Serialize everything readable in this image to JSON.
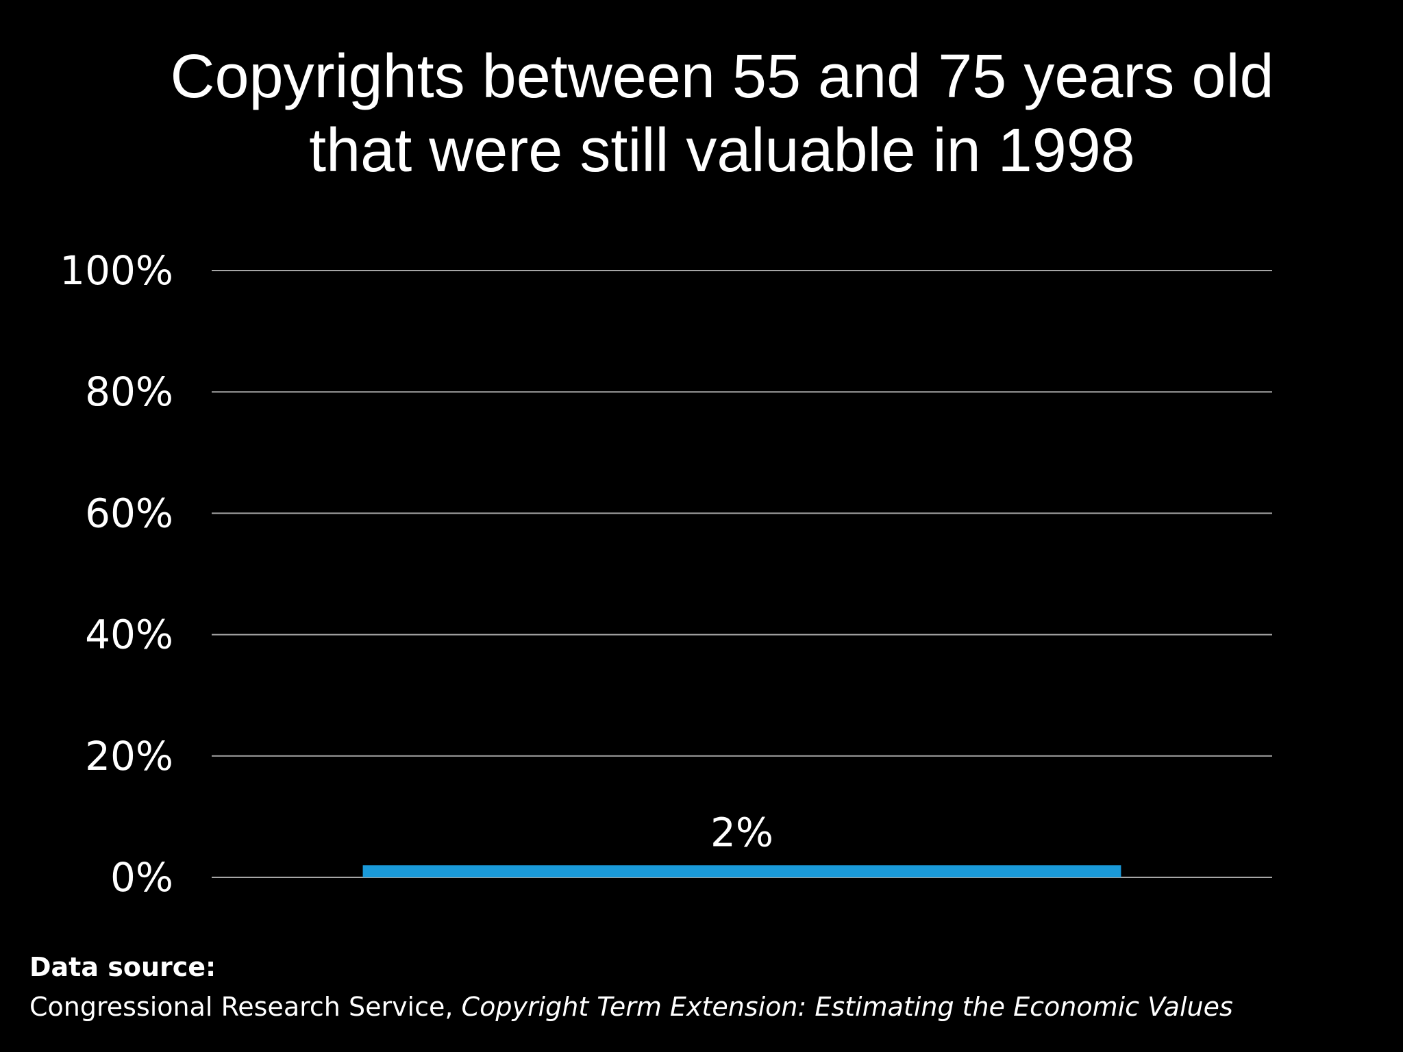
{
  "chart_data": {
    "type": "bar",
    "title": "Copyrights between 55 and 75 years old that were still valuable in 1998",
    "categories": [
      ""
    ],
    "values": [
      2
    ],
    "data_labels": [
      "2%"
    ],
    "ylim": [
      0,
      100
    ],
    "y_ticks": [
      "0%",
      "20%",
      "40%",
      "60%",
      "80%",
      "100%"
    ],
    "y_tick_values": [
      0,
      20,
      40,
      60,
      80,
      100
    ],
    "grid": true,
    "legend": "none",
    "colors": {
      "background": "#000000",
      "bar": "#1a9ad9",
      "gridline": "#a6a6a6",
      "text": "#ffffff"
    }
  },
  "source": {
    "heading": "Data source:",
    "publisher": "Congressional Research Service, ",
    "title": "Copyright Term Extension: Estimating the Economic Values"
  }
}
